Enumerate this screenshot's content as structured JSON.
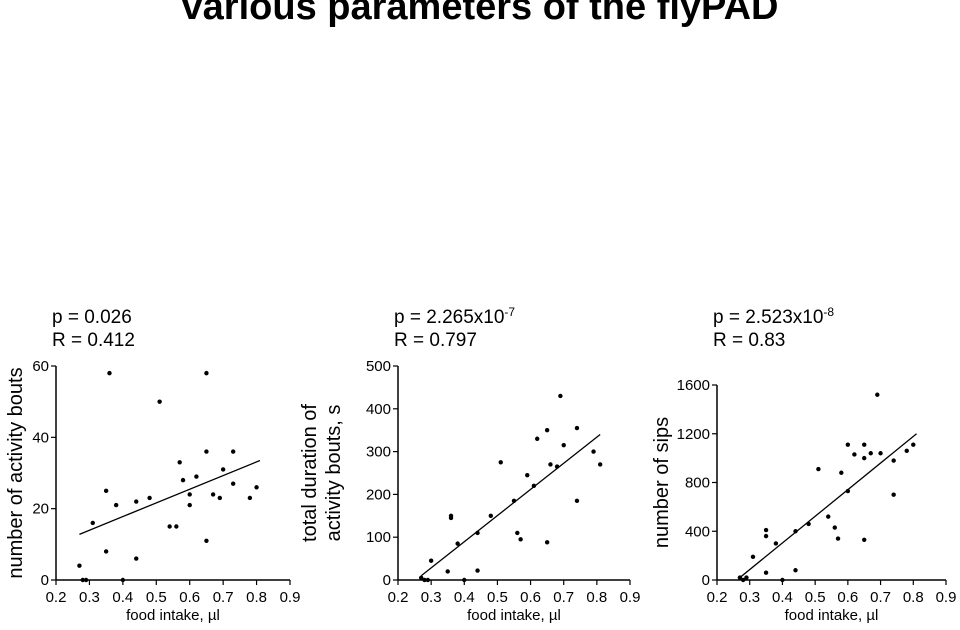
{
  "title": "various parameters of the flyPAD",
  "chart_data": [
    {
      "type": "scatter",
      "stat_p": "p = 0.026",
      "stat_r": "R = 0.412",
      "xlabel": "food intake, µl",
      "ylabel_lines": [
        "number of activity bouts"
      ],
      "xlim": [
        0.2,
        0.9
      ],
      "ylim": [
        0,
        60
      ],
      "xticks": [
        "0.2",
        "0.3",
        "0.4",
        "0.5",
        "0.6",
        "0.7",
        "0.8",
        "0.9"
      ],
      "yticks": [
        "0",
        "20",
        "40",
        "60"
      ],
      "points": [
        [
          0.27,
          4
        ],
        [
          0.28,
          0
        ],
        [
          0.29,
          0
        ],
        [
          0.31,
          16
        ],
        [
          0.35,
          8
        ],
        [
          0.35,
          25
        ],
        [
          0.36,
          58
        ],
        [
          0.38,
          21
        ],
        [
          0.4,
          0
        ],
        [
          0.44,
          6
        ],
        [
          0.44,
          22
        ],
        [
          0.48,
          23
        ],
        [
          0.51,
          50
        ],
        [
          0.54,
          15
        ],
        [
          0.56,
          15
        ],
        [
          0.57,
          33
        ],
        [
          0.58,
          28
        ],
        [
          0.6,
          24
        ],
        [
          0.6,
          21
        ],
        [
          0.62,
          29
        ],
        [
          0.65,
          58
        ],
        [
          0.65,
          36
        ],
        [
          0.65,
          11
        ],
        [
          0.67,
          24
        ],
        [
          0.69,
          23
        ],
        [
          0.7,
          31
        ],
        [
          0.73,
          36
        ],
        [
          0.73,
          27
        ],
        [
          0.78,
          23
        ],
        [
          0.8,
          26
        ]
      ],
      "fit": [
        [
          0.27,
          12.8
        ],
        [
          0.81,
          33.5
        ]
      ]
    },
    {
      "type": "scatter",
      "stat_p": "p = 2.265x10",
      "stat_p_exp": "-7",
      "stat_r": "R = 0.797",
      "xlabel": "food intake, µl",
      "ylabel_lines": [
        "total duration of",
        "activity bouts, s"
      ],
      "xlim": [
        0.2,
        0.9
      ],
      "ylim": [
        0,
        500
      ],
      "xticks": [
        "0.2",
        "0.3",
        "0.4",
        "0.5",
        "0.6",
        "0.7",
        "0.8",
        "0.9"
      ],
      "yticks": [
        "0",
        "100",
        "200",
        "300",
        "400",
        "500"
      ],
      "points": [
        [
          0.27,
          5
        ],
        [
          0.28,
          0
        ],
        [
          0.29,
          0
        ],
        [
          0.3,
          45
        ],
        [
          0.35,
          20
        ],
        [
          0.36,
          150
        ],
        [
          0.36,
          145
        ],
        [
          0.38,
          85
        ],
        [
          0.4,
          0
        ],
        [
          0.44,
          110
        ],
        [
          0.44,
          22
        ],
        [
          0.48,
          150
        ],
        [
          0.51,
          275
        ],
        [
          0.55,
          185
        ],
        [
          0.56,
          110
        ],
        [
          0.57,
          95
        ],
        [
          0.59,
          245
        ],
        [
          0.61,
          220
        ],
        [
          0.62,
          330
        ],
        [
          0.65,
          350
        ],
        [
          0.65,
          88
        ],
        [
          0.66,
          270
        ],
        [
          0.68,
          265
        ],
        [
          0.69,
          430
        ],
        [
          0.7,
          315
        ],
        [
          0.74,
          355
        ],
        [
          0.74,
          185
        ],
        [
          0.79,
          300
        ],
        [
          0.81,
          270
        ]
      ],
      "fit": [
        [
          0.27,
          10
        ],
        [
          0.81,
          340
        ]
      ]
    },
    {
      "type": "scatter",
      "stat_p": "p = 2.523x10",
      "stat_p_exp": "-8",
      "stat_r": "R = 0.83",
      "xlabel": "food intake, µl",
      "ylabel_lines": [
        "number of sips"
      ],
      "xlim": [
        0.2,
        0.9
      ],
      "ylim": [
        0,
        1600
      ],
      "xticks": [
        "0.2",
        "0.3",
        "0.4",
        "0.5",
        "0.6",
        "0.7",
        "0.8",
        "0.9"
      ],
      "yticks": [
        "0",
        "400",
        "800",
        "1200",
        "1600"
      ],
      "points": [
        [
          0.27,
          20
        ],
        [
          0.28,
          0
        ],
        [
          0.29,
          20
        ],
        [
          0.31,
          190
        ],
        [
          0.35,
          410
        ],
        [
          0.35,
          360
        ],
        [
          0.35,
          60
        ],
        [
          0.38,
          300
        ],
        [
          0.4,
          0
        ],
        [
          0.44,
          400
        ],
        [
          0.44,
          80
        ],
        [
          0.48,
          460
        ],
        [
          0.51,
          910
        ],
        [
          0.54,
          520
        ],
        [
          0.56,
          430
        ],
        [
          0.57,
          340
        ],
        [
          0.58,
          880
        ],
        [
          0.6,
          730
        ],
        [
          0.6,
          1110
        ],
        [
          0.62,
          1030
        ],
        [
          0.65,
          1110
        ],
        [
          0.65,
          1000
        ],
        [
          0.65,
          330
        ],
        [
          0.67,
          1040
        ],
        [
          0.69,
          1520
        ],
        [
          0.7,
          1040
        ],
        [
          0.74,
          700
        ],
        [
          0.74,
          980
        ],
        [
          0.78,
          1060
        ],
        [
          0.8,
          1110
        ]
      ],
      "fit": [
        [
          0.27,
          20
        ],
        [
          0.81,
          1200
        ]
      ]
    }
  ]
}
